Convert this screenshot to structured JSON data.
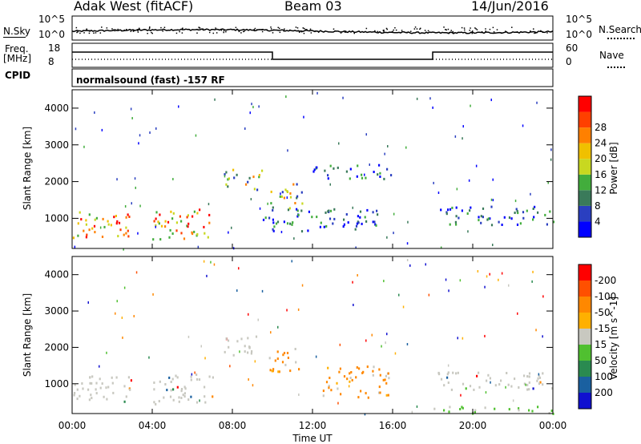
{
  "header": {
    "title": "Adak West (fitACF)",
    "beam": "Beam 03",
    "date": "14/Jun/2016"
  },
  "noise_panel": {
    "left_label": "N.Sky",
    "right_label": "N.Search",
    "left_ticks": [
      "10^5",
      "10^0"
    ],
    "right_ticks": [
      "10^5",
      "10^0"
    ]
  },
  "freq_panel": {
    "left_label_1": "Freq.",
    "left_label_2": "[MHz]",
    "right_label": "Nave",
    "left_ticks": [
      "18",
      "8"
    ],
    "right_ticks": [
      "60",
      "0"
    ]
  },
  "cpid": {
    "label": "CPID",
    "text": "normalsound (fast) -157 RF"
  },
  "colors": {
    "power_scale": [
      "#0000ff",
      "#2a3fc0",
      "#3a7a5a",
      "#42ad3c",
      "#c8d820",
      "#f0c000",
      "#ff8000",
      "#ff4000",
      "#ff0000"
    ],
    "velocity_scale": [
      "#ff0000",
      "#ff5000",
      "#ff8800",
      "#ffb000",
      "#c8c8c0",
      "#50c030",
      "#2a8a50",
      "#1a60a0",
      "#1010d0"
    ]
  },
  "chart_data": [
    {
      "type": "heatmap",
      "title": "",
      "ylabel": "Slant Range [km]",
      "xlabel": "",
      "x_ticks": [
        "00:00",
        "04:00",
        "08:00",
        "12:00",
        "16:00",
        "20:00",
        "00:00"
      ],
      "y_ticks": [
        "1000",
        "2000",
        "3000",
        "4000"
      ],
      "ylim": [
        180,
        4500
      ],
      "xlim_hours": [
        0,
        24
      ],
      "colorbar_label": "Power [dB]",
      "colorbar_ticks": [
        "4",
        "8",
        "12",
        "16",
        "20",
        "24",
        "28"
      ],
      "colorbar_range": [
        0,
        30
      ],
      "scatter_regions": [
        {
          "x": [
            0.0,
            3.0
          ],
          "y": [
            500,
            1250
          ],
          "level": "high"
        },
        {
          "x": [
            4.0,
            7.0
          ],
          "y": [
            450,
            1300
          ],
          "level": "high"
        },
        {
          "x": [
            7.5,
            9.5
          ],
          "y": [
            1800,
            2350
          ],
          "level": "mid"
        },
        {
          "x": [
            9.8,
            11.5
          ],
          "y": [
            1300,
            2000
          ],
          "level": "mid"
        },
        {
          "x": [
            9.5,
            15.5
          ],
          "y": [
            650,
            1300
          ],
          "level": "low"
        },
        {
          "x": [
            12.0,
            16.0
          ],
          "y": [
            2100,
            2500
          ],
          "level": "low"
        },
        {
          "x": [
            18.0,
            24.0
          ],
          "y": [
            850,
            1350
          ],
          "level": "low"
        }
      ]
    },
    {
      "type": "heatmap",
      "title": "",
      "ylabel": "Slant Range [km]",
      "xlabel": "Time UT",
      "x_ticks": [
        "00:00",
        "04:00",
        "08:00",
        "12:00",
        "16:00",
        "20:00",
        "00:00"
      ],
      "y_ticks": [
        "1000",
        "2000",
        "3000",
        "4000"
      ],
      "ylim": [
        180,
        4500
      ],
      "xlim_hours": [
        0,
        24
      ],
      "colorbar_label": "Velocity [m s^-1]",
      "colorbar_ticks": [
        "200",
        "100",
        "50",
        "15",
        "-15",
        "-50",
        "-100",
        "-200"
      ],
      "colorbar_range": [
        -250,
        250
      ],
      "scatter_regions": [
        {
          "x": [
            0.0,
            3.0
          ],
          "y": [
            500,
            1250
          ],
          "level": "ground"
        },
        {
          "x": [
            4.0,
            7.0
          ],
          "y": [
            450,
            1300
          ],
          "level": "ground"
        },
        {
          "x": [
            7.5,
            9.5
          ],
          "y": [
            1800,
            2350
          ],
          "level": "ground"
        },
        {
          "x": [
            9.8,
            11.5
          ],
          "y": [
            1300,
            2000
          ],
          "level": "away"
        },
        {
          "x": [
            12.5,
            15.8
          ],
          "y": [
            650,
            1500
          ],
          "level": "away"
        },
        {
          "x": [
            18.0,
            24.0
          ],
          "y": [
            850,
            1350
          ],
          "level": "ground"
        },
        {
          "x": [
            18.0,
            24.0
          ],
          "y": [
            180,
            400
          ],
          "level": "toward"
        }
      ]
    }
  ]
}
